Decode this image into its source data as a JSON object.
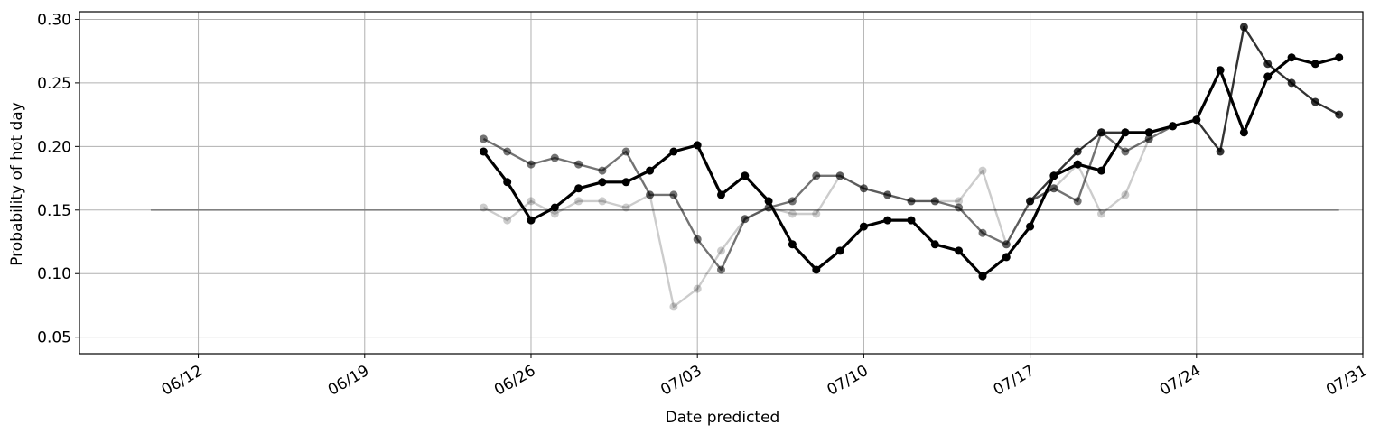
{
  "chart_data": {
    "type": "line",
    "title": "",
    "xlabel": "Date predicted",
    "ylabel": "Probability of hot day",
    "x_tick_labels": [
      "06/12",
      "06/19",
      "06/26",
      "07/03",
      "07/10",
      "07/17",
      "07/24",
      "07/31"
    ],
    "y_tick_labels": [
      "0.05",
      "0.10",
      "0.15",
      "0.20",
      "0.25",
      "0.30"
    ],
    "x_tick_dates": [
      "2023-06-12",
      "2023-06-19",
      "2023-06-26",
      "2023-07-03",
      "2023-07-10",
      "2023-07-17",
      "2023-07-24",
      "2023-07-31"
    ],
    "y_ticks": [
      0.05,
      0.1,
      0.15,
      0.2,
      0.25,
      0.3
    ],
    "xlim": [
      "2023-06-07",
      "2023-07-31"
    ],
    "ylim": [
      0.037,
      0.306
    ],
    "grid": true,
    "reference_line": {
      "y": 0.15,
      "x_start": "2023-06-10",
      "x_end": "2023-07-30",
      "color": "#808080"
    },
    "series": [
      {
        "color": "#000000",
        "opacity": 0.2,
        "x": [
          "2023-06-24",
          "2023-06-25",
          "2023-06-26",
          "2023-06-27",
          "2023-06-28",
          "2023-06-29",
          "2023-06-30",
          "2023-07-01",
          "2023-07-02",
          "2023-07-03",
          "2023-07-04",
          "2023-07-05",
          "2023-07-06",
          "2023-07-07",
          "2023-07-08",
          "2023-07-09",
          "2023-07-10",
          "2023-07-11",
          "2023-07-12",
          "2023-07-13",
          "2023-07-14",
          "2023-07-15",
          "2023-07-16",
          "2023-07-17",
          "2023-07-18",
          "2023-07-19",
          "2023-07-20",
          "2023-07-21",
          "2023-07-22"
        ],
        "y": [
          0.152,
          0.142,
          0.157,
          0.147,
          0.157,
          0.157,
          0.152,
          0.162,
          0.074,
          0.088,
          0.118,
          0.143,
          0.152,
          0.147,
          0.147,
          0.177,
          0.167,
          0.162,
          0.157,
          0.157,
          0.157,
          0.181,
          0.123,
          0.157,
          0.167,
          0.186,
          0.147,
          0.162,
          0.206
        ]
      },
      {
        "color": "#000000",
        "opacity": 0.55,
        "x": [
          "2023-06-24",
          "2023-06-25",
          "2023-06-26",
          "2023-06-27",
          "2023-06-28",
          "2023-06-29",
          "2023-06-30",
          "2023-07-01",
          "2023-07-02",
          "2023-07-03",
          "2023-07-04",
          "2023-07-05",
          "2023-07-06",
          "2023-07-07",
          "2023-07-08",
          "2023-07-09",
          "2023-07-10",
          "2023-07-11",
          "2023-07-12",
          "2023-07-13",
          "2023-07-14",
          "2023-07-15",
          "2023-07-16",
          "2023-07-17",
          "2023-07-18",
          "2023-07-19",
          "2023-07-20",
          "2023-07-21",
          "2023-07-22",
          "2023-07-23"
        ],
        "y": [
          0.206,
          0.196,
          0.186,
          0.191,
          0.186,
          0.181,
          0.196,
          0.162,
          0.162,
          0.127,
          0.103,
          0.143,
          0.152,
          0.157,
          0.177,
          0.177,
          0.167,
          0.162,
          0.157,
          0.157,
          0.152,
          0.132,
          0.123,
          0.157,
          0.167,
          0.157,
          0.211,
          0.196,
          0.206,
          0.216
        ]
      },
      {
        "color": "#000000",
        "opacity": 0.8,
        "x": [
          "2023-07-17",
          "2023-07-18",
          "2023-07-19",
          "2023-07-20",
          "2023-07-21",
          "2023-07-22",
          "2023-07-23",
          "2023-07-24",
          "2023-07-25",
          "2023-07-26",
          "2023-07-27",
          "2023-07-28",
          "2023-07-29",
          "2023-07-30"
        ],
        "y": [
          0.157,
          0.177,
          0.196,
          0.211,
          0.211,
          0.211,
          0.216,
          0.221,
          0.196,
          0.294,
          0.265,
          0.25,
          0.235,
          0.225
        ]
      },
      {
        "color": "#000000",
        "opacity": 1.0,
        "x": [
          "2023-06-24",
          "2023-06-25",
          "2023-06-26",
          "2023-06-27",
          "2023-06-28",
          "2023-06-29",
          "2023-06-30",
          "2023-07-01",
          "2023-07-02",
          "2023-07-03",
          "2023-07-04",
          "2023-07-05",
          "2023-07-06",
          "2023-07-07",
          "2023-07-08",
          "2023-07-09",
          "2023-07-10",
          "2023-07-11",
          "2023-07-12",
          "2023-07-13",
          "2023-07-14",
          "2023-07-15",
          "2023-07-16",
          "2023-07-17",
          "2023-07-18",
          "2023-07-19",
          "2023-07-20",
          "2023-07-21",
          "2023-07-22",
          "2023-07-23",
          "2023-07-24",
          "2023-07-25",
          "2023-07-26",
          "2023-07-27",
          "2023-07-28",
          "2023-07-29",
          "2023-07-30"
        ],
        "y": [
          0.196,
          0.172,
          0.142,
          0.152,
          0.167,
          0.172,
          0.172,
          0.181,
          0.196,
          0.201,
          0.162,
          0.177,
          0.157,
          0.123,
          0.103,
          0.118,
          0.137,
          0.142,
          0.142,
          0.123,
          0.118,
          0.098,
          0.113,
          0.137,
          0.177,
          0.186,
          0.181,
          0.211,
          0.211,
          0.216,
          0.221,
          0.26,
          0.211,
          0.255,
          0.27,
          0.265,
          0.27
        ]
      }
    ]
  }
}
